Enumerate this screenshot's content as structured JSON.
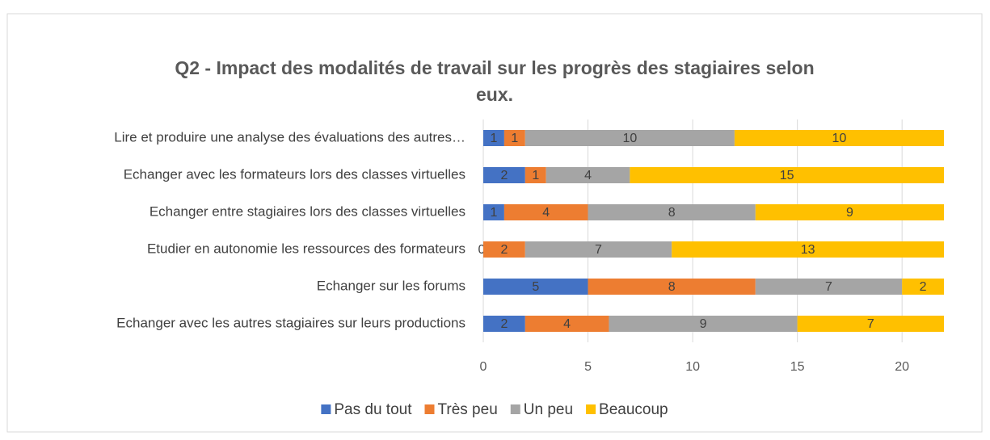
{
  "chart_data": {
    "type": "stacked-bar",
    "title_lines": [
      "Q2 - Impact des modalités de travail sur les progrès des stagiaires selon",
      "eux."
    ],
    "categories": [
      "Lire et produire une analyse des évaluations des autres…",
      "Echanger avec les formateurs lors des classes virtuelles",
      "Echanger entre stagiaires lors des classes virtuelles",
      "Etudier en autonomie les ressources des formateurs",
      "Echanger sur les forums",
      "Echanger avec les autres stagiaires sur leurs productions"
    ],
    "series": [
      {
        "name": "Pas du tout",
        "color": "#4472c4",
        "values": [
          1,
          2,
          1,
          0,
          5,
          2
        ]
      },
      {
        "name": "Très peu",
        "color": "#ed7d31",
        "values": [
          1,
          1,
          4,
          2,
          8,
          4
        ]
      },
      {
        "name": "Un peu",
        "color": "#a5a5a5",
        "values": [
          10,
          4,
          8,
          7,
          7,
          9
        ]
      },
      {
        "name": "Beaucoup",
        "color": "#ffc000",
        "values": [
          10,
          15,
          9,
          13,
          2,
          7
        ]
      }
    ],
    "xlim": [
      0,
      22
    ],
    "xticks": [
      0,
      5,
      10,
      15,
      20
    ],
    "grid": true,
    "legend": "bottom"
  }
}
